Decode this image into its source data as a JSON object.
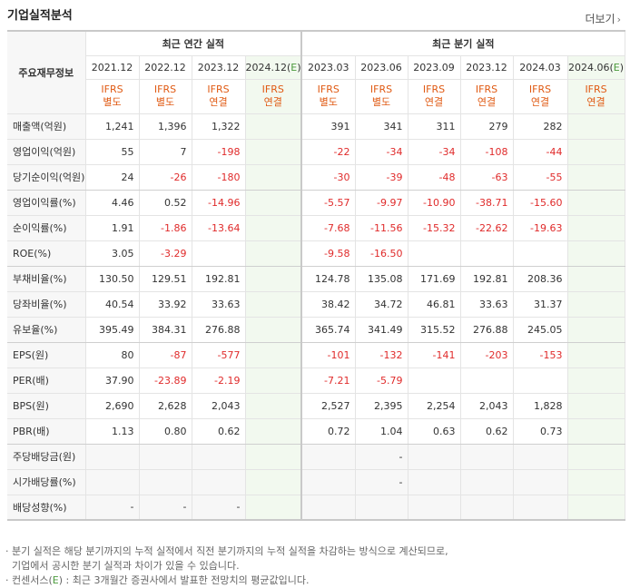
{
  "header": {
    "title": "기업실적분석",
    "more_label": "더보기",
    "more_icon": "chevron-right-icon"
  },
  "table": {
    "row_header": "주요재무정보",
    "groups": [
      {
        "label": "최근 연간 실적"
      },
      {
        "label": "최근 분기 실적"
      }
    ],
    "columns": [
      {
        "period": "2021.12",
        "std1": "IFRS",
        "std2": "별도"
      },
      {
        "period": "2022.12",
        "std1": "IFRS",
        "std2": "별도"
      },
      {
        "period": "2023.12",
        "std1": "IFRS",
        "std2": "연결"
      },
      {
        "period": "2024.12(E)",
        "std1": "IFRS",
        "std2": "연결"
      },
      {
        "period": "2023.03",
        "std1": "IFRS",
        "std2": "별도"
      },
      {
        "period": "2023.06",
        "std1": "IFRS",
        "std2": "별도"
      },
      {
        "period": "2023.09",
        "std1": "IFRS",
        "std2": "연결"
      },
      {
        "period": "2023.12",
        "std1": "IFRS",
        "std2": "연결"
      },
      {
        "period": "2024.03",
        "std1": "IFRS",
        "std2": "연결"
      },
      {
        "period": "2024.06(E)",
        "std1": "IFRS",
        "std2": "연결"
      }
    ],
    "rows": [
      {
        "label": "매출액(억원)",
        "values": [
          "1,241",
          "1,396",
          "1,322",
          "",
          "391",
          "341",
          "311",
          "279",
          "282",
          ""
        ]
      },
      {
        "label": "영업이익(억원)",
        "values": [
          "55",
          "7",
          "-198",
          "",
          "-22",
          "-34",
          "-34",
          "-108",
          "-44",
          ""
        ]
      },
      {
        "label": "당기순이익(억원)",
        "values": [
          "24",
          "-26",
          "-180",
          "",
          "-30",
          "-39",
          "-48",
          "-63",
          "-55",
          ""
        ]
      },
      {
        "label": "영업이익률(%)",
        "values": [
          "4.46",
          "0.52",
          "-14.96",
          "",
          "-5.57",
          "-9.97",
          "-10.90",
          "-38.71",
          "-15.60",
          ""
        ]
      },
      {
        "label": "순이익률(%)",
        "values": [
          "1.91",
          "-1.86",
          "-13.64",
          "",
          "-7.68",
          "-11.56",
          "-15.32",
          "-22.62",
          "-19.63",
          ""
        ]
      },
      {
        "label": "ROE(%)",
        "values": [
          "3.05",
          "-3.29",
          "",
          "",
          "-9.58",
          "-16.50",
          "",
          "",
          "",
          ""
        ]
      },
      {
        "label": "부채비율(%)",
        "values": [
          "130.50",
          "129.51",
          "192.81",
          "",
          "124.78",
          "135.08",
          "171.69",
          "192.81",
          "208.36",
          ""
        ]
      },
      {
        "label": "당좌비율(%)",
        "values": [
          "40.54",
          "33.92",
          "33.63",
          "",
          "38.42",
          "34.72",
          "46.81",
          "33.63",
          "31.37",
          ""
        ]
      },
      {
        "label": "유보율(%)",
        "values": [
          "395.49",
          "384.31",
          "276.88",
          "",
          "365.74",
          "341.49",
          "315.52",
          "276.88",
          "245.05",
          ""
        ]
      },
      {
        "label": "EPS(원)",
        "values": [
          "80",
          "-87",
          "-577",
          "",
          "-101",
          "-132",
          "-141",
          "-203",
          "-153",
          ""
        ]
      },
      {
        "label": "PER(배)",
        "values": [
          "37.90",
          "-23.89",
          "-2.19",
          "",
          "-7.21",
          "-5.79",
          "",
          "",
          "",
          ""
        ]
      },
      {
        "label": "BPS(원)",
        "values": [
          "2,690",
          "2,628",
          "2,043",
          "",
          "2,527",
          "2,395",
          "2,254",
          "2,043",
          "1,828",
          ""
        ]
      },
      {
        "label": "PBR(배)",
        "values": [
          "1.13",
          "0.80",
          "0.62",
          "",
          "0.72",
          "1.04",
          "0.63",
          "0.62",
          "0.73",
          ""
        ]
      },
      {
        "label": "주당배당금(원)",
        "values": [
          "",
          "",
          "",
          "",
          "",
          "-",
          "",
          "",
          "",
          ""
        ]
      },
      {
        "label": "시가배당률(%)",
        "values": [
          "",
          "",
          "",
          "",
          "",
          "-",
          "",
          "",
          "",
          ""
        ]
      },
      {
        "label": "배당성향(%)",
        "values": [
          "-",
          "-",
          "-",
          "",
          "",
          "",
          "",
          "",
          "",
          ""
        ]
      }
    ]
  },
  "notes": {
    "line1": "· 분기 실적은 해당 분기까지의 누적 실적에서 직전 분기까지의 누적 실적을 차감하는 방식으로 계산되므로,",
    "line2": "  기업에서 공시한 분기 실적과 차이가 있을 수 있습니다.",
    "line3_prefix": "· 컨센서스(",
    "line3_e": "E",
    "line3_suffix": ") : 최근 3개월간 증권사에서 발표한 전망치의 평균값입니다."
  }
}
